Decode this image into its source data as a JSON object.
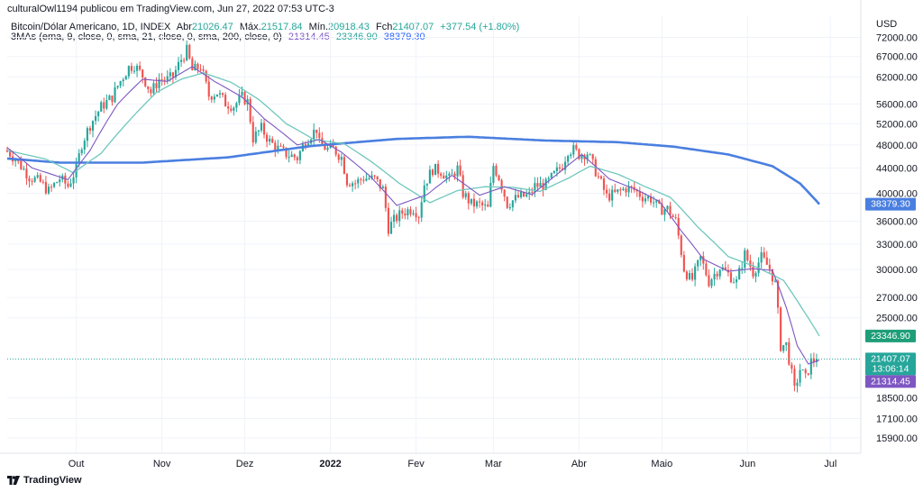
{
  "header": {
    "publisher": "culturalOwl1194 publicou em TradingView.com, Jun 27, 2022 07:53 UTC-3"
  },
  "legend": {
    "symbol": "Bitcoin/Dólar Americano, 1D, INDEX",
    "open_label": "Abr",
    "open": "21026.47",
    "high_label": "Máx.",
    "high": "21517.84",
    "low_label": "Mín.",
    "low": "20918.43",
    "close_label": "Fch",
    "close": "21407.07",
    "change": "+377.54 (+1.80%)",
    "indicator": "3MAs (ema, 9, close, 0, sma, 21, close, 0, sma, 200, close, 0)",
    "ma1": "21314.45",
    "ma2": "23346.90",
    "ma3": "38379.30"
  },
  "footer": {
    "brand": "TradingView"
  },
  "colors": {
    "up": "#26a69a",
    "down": "#ef5350",
    "ema9": "#7e57c2",
    "sma21": "#6fc7bd",
    "sma200": "#4a7fe0",
    "grid": "#f0f3fa"
  },
  "chart_data": {
    "type": "candlestick",
    "currency": "USD",
    "y_scale": "log",
    "ylim": [
      15000,
      78000
    ],
    "y_ticks": [
      "72000.00",
      "67000.00",
      "62000.00",
      "56000.00",
      "52000.00",
      "48000.00",
      "44000.00",
      "40000.00",
      "36000.00",
      "33000.00",
      "30000.00",
      "27000.00",
      "25000.00",
      "18500.00",
      "17100.00",
      "15900.00"
    ],
    "x_ticks": [
      "Out",
      "Nov",
      "Dez",
      "2022",
      "Fev",
      "Mar",
      "Abr",
      "Maio",
      "Jun",
      "Jul"
    ],
    "x_tick_dates": [
      "2021-10-01",
      "2021-11-01",
      "2021-12-01",
      "2022-01-01",
      "2022-02-01",
      "2022-03-01",
      "2022-04-01",
      "2022-05-01",
      "2022-06-01",
      "2022-07-01"
    ],
    "x_range": [
      "2021-09-06",
      "2022-07-12"
    ],
    "price_tags": [
      {
        "series": "sma200",
        "value": "38379.30",
        "text": [
          "38379.30"
        ]
      },
      {
        "series": "sma21",
        "value": "23346.90",
        "text": [
          "23346.90"
        ]
      },
      {
        "series": "last",
        "value": "21407.07",
        "text": [
          "21407.07",
          "13:06:14"
        ]
      },
      {
        "series": "ema9",
        "value": "21314.45",
        "text": [
          "21314.45"
        ]
      }
    ],
    "last_price": 21407.07,
    "closes_anchor": [
      [
        "2021-09-06",
        46800
      ],
      [
        "2021-09-07",
        46500
      ],
      [
        "2021-09-10",
        44900
      ],
      [
        "2021-09-14",
        42600
      ],
      [
        "2021-09-18",
        41700
      ],
      [
        "2021-09-21",
        40300
      ],
      [
        "2021-09-25",
        42300
      ],
      [
        "2021-09-28",
        41100
      ],
      [
        "2021-10-01",
        43800
      ],
      [
        "2021-10-03",
        48200
      ],
      [
        "2021-10-06",
        51800
      ],
      [
        "2021-10-10",
        55400
      ],
      [
        "2021-10-14",
        57500
      ],
      [
        "2021-10-16",
        60000
      ],
      [
        "2021-10-20",
        64300
      ],
      [
        "2021-10-22",
        64900
      ],
      [
        "2021-10-25",
        62300
      ],
      [
        "2021-10-28",
        58500
      ],
      [
        "2021-10-31",
        61500
      ],
      [
        "2021-11-03",
        61400
      ],
      [
        "2021-11-05",
        62100
      ],
      [
        "2021-11-08",
        66300
      ],
      [
        "2021-11-10",
        68500
      ],
      [
        "2021-11-12",
        63500
      ],
      [
        "2021-11-15",
        64600
      ],
      [
        "2021-11-18",
        57800
      ],
      [
        "2021-11-21",
        58500
      ],
      [
        "2021-11-24",
        56200
      ],
      [
        "2021-11-27",
        55600
      ],
      [
        "2021-11-30",
        57500
      ],
      [
        "2021-12-02",
        56500
      ],
      [
        "2021-12-04",
        49200
      ],
      [
        "2021-12-07",
        51100
      ],
      [
        "2021-12-10",
        48600
      ],
      [
        "2021-12-13",
        47300
      ],
      [
        "2021-12-16",
        46400
      ],
      [
        "2021-12-20",
        45700
      ],
      [
        "2021-12-23",
        48800
      ],
      [
        "2021-12-27",
        51000
      ],
      [
        "2021-12-28",
        48200
      ],
      [
        "2021-12-31",
        47200
      ],
      [
        "2022-01-02",
        47300
      ],
      [
        "2022-01-05",
        45800
      ],
      [
        "2022-01-07",
        41900
      ],
      [
        "2022-01-10",
        41600
      ],
      [
        "2022-01-13",
        42400
      ],
      [
        "2022-01-17",
        42200
      ],
      [
        "2022-01-20",
        40600
      ],
      [
        "2022-01-22",
        35100
      ],
      [
        "2022-01-24",
        36100
      ],
      [
        "2022-01-27",
        37200
      ],
      [
        "2022-01-31",
        37800
      ],
      [
        "2022-02-02",
        36900
      ],
      [
        "2022-02-04",
        41400
      ],
      [
        "2022-02-07",
        43800
      ],
      [
        "2022-02-10",
        43500
      ],
      [
        "2022-02-13",
        42200
      ],
      [
        "2022-02-16",
        43900
      ],
      [
        "2022-02-18",
        40000
      ],
      [
        "2022-02-21",
        38400
      ],
      [
        "2022-02-24",
        38300
      ],
      [
        "2022-02-27",
        37700
      ],
      [
        "2022-03-01",
        44400
      ],
      [
        "2022-03-03",
        42500
      ],
      [
        "2022-03-06",
        38400
      ],
      [
        "2022-03-10",
        39400
      ],
      [
        "2022-03-14",
        39700
      ],
      [
        "2022-03-16",
        41100
      ],
      [
        "2022-03-20",
        41300
      ],
      [
        "2022-03-23",
        42900
      ],
      [
        "2022-03-26",
        44500
      ],
      [
        "2022-03-28",
        47100
      ],
      [
        "2022-03-30",
        47100
      ],
      [
        "2022-04-01",
        46300
      ],
      [
        "2022-04-04",
        46600
      ],
      [
        "2022-04-07",
        43500
      ],
      [
        "2022-04-11",
        39500
      ],
      [
        "2022-04-14",
        39900
      ],
      [
        "2022-04-18",
        40800
      ],
      [
        "2022-04-21",
        40500
      ],
      [
        "2022-04-24",
        39500
      ],
      [
        "2022-04-27",
        39200
      ],
      [
        "2022-04-30",
        37700
      ],
      [
        "2022-05-03",
        37700
      ],
      [
        "2022-05-06",
        36000
      ],
      [
        "2022-05-09",
        30100
      ],
      [
        "2022-05-11",
        29000
      ],
      [
        "2022-05-12",
        28900
      ],
      [
        "2022-05-15",
        31300
      ],
      [
        "2022-05-18",
        28700
      ],
      [
        "2022-05-22",
        30300
      ],
      [
        "2022-05-25",
        29500
      ],
      [
        "2022-05-28",
        28600
      ],
      [
        "2022-05-31",
        31800
      ],
      [
        "2022-06-03",
        29700
      ],
      [
        "2022-06-06",
        31400
      ],
      [
        "2022-06-09",
        30100
      ],
      [
        "2022-06-11",
        28400
      ],
      [
        "2022-06-13",
        22500
      ],
      [
        "2022-06-15",
        22600
      ],
      [
        "2022-06-18",
        19000
      ],
      [
        "2022-06-20",
        20600
      ],
      [
        "2022-06-22",
        19900
      ],
      [
        "2022-06-24",
        21200
      ],
      [
        "2022-06-26",
        21400
      ]
    ],
    "ema9_anchor": [
      [
        "2021-09-06",
        47500
      ],
      [
        "2021-09-15",
        44000
      ],
      [
        "2021-09-28",
        42100
      ],
      [
        "2021-10-06",
        47000
      ],
      [
        "2021-10-16",
        56000
      ],
      [
        "2021-10-25",
        61500
      ],
      [
        "2021-11-03",
        61000
      ],
      [
        "2021-11-12",
        64500
      ],
      [
        "2021-11-20",
        61000
      ],
      [
        "2021-11-30",
        57500
      ],
      [
        "2021-12-08",
        53000
      ],
      [
        "2021-12-20",
        48000
      ],
      [
        "2021-12-28",
        49000
      ],
      [
        "2022-01-05",
        46700
      ],
      [
        "2022-01-15",
        42800
      ],
      [
        "2022-01-25",
        38200
      ],
      [
        "2022-02-05",
        39800
      ],
      [
        "2022-02-14",
        42800
      ],
      [
        "2022-02-24",
        39700
      ],
      [
        "2022-03-05",
        41000
      ],
      [
        "2022-03-15",
        39800
      ],
      [
        "2022-03-25",
        43300
      ],
      [
        "2022-04-02",
        46300
      ],
      [
        "2022-04-12",
        42200
      ],
      [
        "2022-04-22",
        40500
      ],
      [
        "2022-04-30",
        38800
      ],
      [
        "2022-05-08",
        34700
      ],
      [
        "2022-05-16",
        31200
      ],
      [
        "2022-05-25",
        29800
      ],
      [
        "2022-06-03",
        30100
      ],
      [
        "2022-06-10",
        29900
      ],
      [
        "2022-06-15",
        26000
      ],
      [
        "2022-06-19",
        22500
      ],
      [
        "2022-06-23",
        21000
      ],
      [
        "2022-06-27",
        21314
      ]
    ],
    "sma21_anchor": [
      [
        "2021-09-06",
        47000
      ],
      [
        "2021-09-20",
        45500
      ],
      [
        "2021-09-30",
        43200
      ],
      [
        "2021-10-10",
        46500
      ],
      [
        "2021-10-20",
        52500
      ],
      [
        "2021-10-30",
        58500
      ],
      [
        "2021-11-08",
        61500
      ],
      [
        "2021-11-16",
        63000
      ],
      [
        "2021-11-26",
        60800
      ],
      [
        "2021-12-06",
        57000
      ],
      [
        "2021-12-16",
        52000
      ],
      [
        "2021-12-26",
        49000
      ],
      [
        "2022-01-06",
        48200
      ],
      [
        "2022-01-16",
        45000
      ],
      [
        "2022-01-26",
        41500
      ],
      [
        "2022-02-06",
        38600
      ],
      [
        "2022-02-16",
        40400
      ],
      [
        "2022-02-26",
        41000
      ],
      [
        "2022-03-08",
        40900
      ],
      [
        "2022-03-18",
        40300
      ],
      [
        "2022-03-28",
        42300
      ],
      [
        "2022-04-05",
        44300
      ],
      [
        "2022-04-15",
        43000
      ],
      [
        "2022-04-25",
        41000
      ],
      [
        "2022-05-04",
        39400
      ],
      [
        "2022-05-14",
        35200
      ],
      [
        "2022-05-25",
        31500
      ],
      [
        "2022-06-04",
        30300
      ],
      [
        "2022-06-14",
        28800
      ],
      [
        "2022-06-21",
        25800
      ],
      [
        "2022-06-27",
        23347
      ]
    ],
    "sma200_anchor": [
      [
        "2021-09-06",
        45600
      ],
      [
        "2021-09-25",
        44900
      ],
      [
        "2021-10-25",
        44900
      ],
      [
        "2021-11-25",
        45800
      ],
      [
        "2021-12-25",
        47800
      ],
      [
        "2022-01-25",
        49100
      ],
      [
        "2022-02-20",
        49500
      ],
      [
        "2022-03-20",
        48800
      ],
      [
        "2022-04-15",
        48500
      ],
      [
        "2022-05-05",
        47700
      ],
      [
        "2022-05-25",
        46300
      ],
      [
        "2022-06-10",
        44300
      ],
      [
        "2022-06-20",
        41500
      ],
      [
        "2022-06-27",
        38379
      ]
    ]
  }
}
